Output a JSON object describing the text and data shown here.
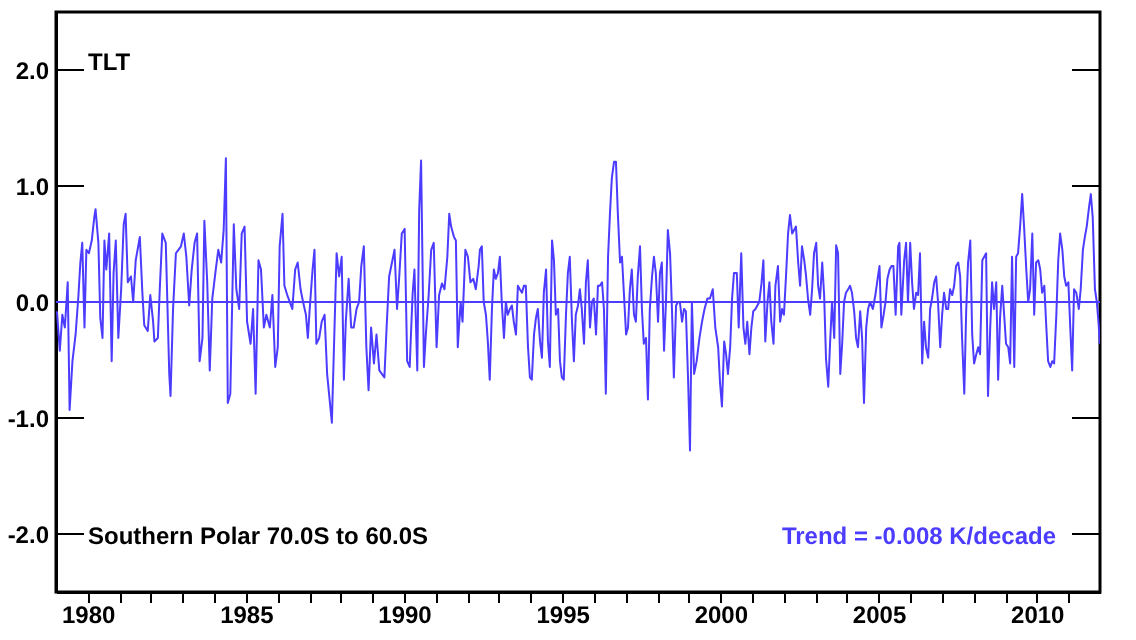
{
  "chart_data": {
    "type": "line",
    "title": "TLT",
    "annotations": [
      "Southern Polar  70.0S to  60.0S",
      "Trend = -0.008 K/decade"
    ],
    "series": [
      {
        "color": "#4b3cff",
        "x": [
          1979.03,
          1979.12,
          1979.2,
          1979.28,
          1979.37,
          1979.43,
          1979.52,
          1979.62,
          1979.71,
          1979.77,
          1979.83,
          1979.9,
          1979.96,
          1980.04,
          1980.13,
          1980.21,
          1980.25,
          1980.34,
          1980.4,
          1980.47,
          1980.53,
          1980.59,
          1980.68,
          1980.76,
          1980.82,
          1980.89,
          1980.97,
          1981.06,
          1981.14,
          1981.2,
          1981.27,
          1981.37,
          1981.44,
          1981.52,
          1981.65,
          1981.73,
          1981.79,
          1981.9,
          1981.98,
          1982.07,
          1982.11,
          1982.22,
          1982.28,
          1982.36,
          1982.47,
          1982.58,
          1982.62,
          1982.7,
          1982.79,
          1982.87,
          1982.95,
          1983.04,
          1983.12,
          1983.21,
          1983.29,
          1983.38,
          1983.46,
          1983.54,
          1983.63,
          1983.69,
          1983.78,
          1983.86,
          1983.94,
          1984.05,
          1984.13,
          1984.22,
          1984.3,
          1984.37,
          1984.43,
          1984.51,
          1984.62,
          1984.7,
          1984.79,
          1984.87,
          1984.96,
          1985.04,
          1985.15,
          1985.23,
          1985.31,
          1985.4,
          1985.48,
          1985.57,
          1985.65,
          1985.76,
          1985.84,
          1985.93,
          1986.01,
          1986.07,
          1986.16,
          1986.22,
          1986.31,
          1986.39,
          1986.47,
          1986.56,
          1986.64,
          1986.73,
          1986.81,
          1986.9,
          1986.96,
          1987.02,
          1987.11,
          1987.17,
          1987.23,
          1987.32,
          1987.4,
          1987.49,
          1987.57,
          1987.67,
          1987.72,
          1987.78,
          1987.87,
          1987.95,
          1988.03,
          1988.1,
          1988.16,
          1988.25,
          1988.33,
          1988.41,
          1988.5,
          1988.58,
          1988.65,
          1988.73,
          1988.81,
          1988.88,
          1988.96,
          1989.05,
          1989.13,
          1989.22,
          1989.3,
          1989.38,
          1989.45,
          1989.53,
          1989.62,
          1989.7,
          1989.78,
          1989.85,
          1989.93,
          1990.02,
          1990.1,
          1990.18,
          1990.27,
          1990.33,
          1990.42,
          1990.48,
          1990.54,
          1990.63,
          1990.69,
          1990.78,
          1990.86,
          1990.94,
          1991.03,
          1991.11,
          1991.2,
          1991.28,
          1991.37,
          1991.43,
          1991.49,
          1991.58,
          1991.64,
          1991.7,
          1991.79,
          1991.85,
          1991.94,
          1992.02,
          1992.1,
          1992.19,
          1992.27,
          1992.36,
          1992.4,
          1992.46,
          1992.52,
          1992.59,
          1992.65,
          1992.71,
          1992.78,
          1992.84,
          1992.9,
          1992.97,
          1993.03,
          1993.09,
          1993.16,
          1993.22,
          1993.28,
          1993.35,
          1993.41,
          1993.47,
          1993.54,
          1993.6,
          1993.66,
          1993.73,
          1993.79,
          1993.85,
          1993.92,
          1993.98,
          1994.04,
          1994.11,
          1994.17,
          1994.23,
          1994.3,
          1994.36,
          1994.42,
          1994.49,
          1994.55,
          1994.61,
          1994.68,
          1994.74,
          1994.8,
          1994.87,
          1994.93,
          1994.99,
          1995.05,
          1995.12,
          1995.18,
          1995.24,
          1995.31,
          1995.37,
          1995.43,
          1995.5,
          1995.56,
          1995.62,
          1995.69,
          1995.75,
          1995.81,
          1995.88,
          1995.94,
          1996.0,
          1996.07,
          1996.13,
          1996.19,
          1996.26,
          1996.32,
          1996.38,
          1996.45,
          1996.51,
          1996.57,
          1996.64,
          1996.7,
          1996.76,
          1996.83,
          1996.89,
          1996.95,
          1997.02,
          1997.08,
          1997.14,
          1997.2,
          1997.27,
          1997.33,
          1997.39,
          1997.46,
          1997.52,
          1997.58,
          1997.65,
          1997.71,
          1997.77,
          1997.84,
          1997.9,
          1997.96,
          1998.03,
          1998.09,
          1998.15,
          1998.22,
          1998.28,
          1998.34,
          1998.41,
          1998.47,
          1998.53,
          1998.6,
          1998.66,
          1998.72,
          1998.79,
          1998.85,
          1998.91,
          1998.98,
          1999.04,
          1999.1,
          1999.17,
          1999.25,
          1999.34,
          1999.42,
          1999.5,
          1999.59,
          1999.67,
          1999.76,
          1999.84,
          1999.93,
          1999.99,
          2000.05,
          2000.12,
          2000.18,
          2000.24,
          2000.31,
          2000.37,
          2000.43,
          2000.52,
          2000.58,
          2000.66,
          2000.73,
          2000.79,
          2000.85,
          2000.92,
          2000.98,
          2001.04,
          2001.11,
          2001.17,
          2001.23,
          2001.3,
          2001.36,
          2001.42,
          2001.49,
          2001.55,
          2001.61,
          2001.68,
          2001.74,
          2001.82,
          2001.89,
          2001.95,
          2002.01,
          2002.08,
          2002.14,
          2002.2,
          2002.27,
          2002.33,
          2002.39,
          2002.46,
          2002.52,
          2002.58,
          2002.65,
          2002.71,
          2002.77,
          2002.84,
          2002.9,
          2002.96,
          2003.03,
          2003.09,
          2003.15,
          2003.22,
          2003.28,
          2003.34,
          2003.41,
          2003.47,
          2003.53,
          2003.6,
          2003.66,
          2003.72,
          2003.79,
          2003.85,
          2003.91,
          2003.97,
          2004.04,
          2004.1,
          2004.16,
          2004.23,
          2004.29,
          2004.35,
          2004.42,
          2004.48,
          2004.54,
          2004.61,
          2004.67,
          2004.73,
          2004.82,
          2004.9,
          2004.97,
          2005.03,
          2005.09,
          2005.16,
          2005.22,
          2005.28,
          2005.35,
          2005.41,
          2005.47,
          2005.54,
          2005.62,
          2005.66,
          2005.72,
          2005.81,
          2005.87,
          2005.93,
          2006.0,
          2006.06,
          2006.12,
          2006.19,
          2006.25,
          2006.31,
          2006.38,
          2006.44,
          2006.5,
          2006.57,
          2006.63,
          2006.69,
          2006.76,
          2006.82,
          2006.88,
          2006.95,
          2007.01,
          2007.07,
          2007.14,
          2007.2,
          2007.26,
          2007.33,
          2007.39,
          2007.45,
          2007.52,
          2007.58,
          2007.64,
          2007.71,
          2007.77,
          2007.83,
          2007.9,
          2007.96,
          2008.02,
          2008.09,
          2008.15,
          2008.21,
          2008.28,
          2008.34,
          2008.4,
          2008.46,
          2008.53,
          2008.59,
          2008.65,
          2008.72,
          2008.78,
          2008.84,
          2008.91,
          2008.97,
          2009.03,
          2009.1,
          2009.16,
          2009.22,
          2009.29,
          2009.35,
          2009.41,
          2009.48,
          2009.54,
          2009.6,
          2009.67,
          2009.73,
          2009.79,
          2009.86,
          2009.92,
          2009.98,
          2010.05,
          2010.11,
          2010.17,
          2010.24,
          2010.3,
          2010.36,
          2010.43,
          2010.49,
          2010.55,
          2010.62,
          2010.68,
          2010.74,
          2010.81,
          2010.87,
          2010.93,
          2011.0,
          2011.06,
          2011.12,
          2011.18,
          2011.25,
          2011.33,
          2011.39,
          2011.46,
          2011.52,
          2011.58,
          2011.65,
          2011.71,
          2011.77,
          2011.84,
          2011.9,
          2011.96,
          2011.99
        ],
        "values": [
          -0.08,
          -0.42,
          -0.11,
          -0.22,
          0.17,
          -0.93,
          -0.51,
          -0.28,
          0.06,
          0.34,
          0.51,
          -0.22,
          0.45,
          0.42,
          0.53,
          0.73,
          0.8,
          0.51,
          -0.14,
          -0.31,
          0.53,
          0.28,
          0.59,
          -0.51,
          0.25,
          0.53,
          -0.31,
          0.11,
          0.67,
          0.76,
          0.17,
          0.22,
          0.0,
          0.36,
          0.56,
          0.08,
          -0.2,
          -0.25,
          0.06,
          -0.17,
          -0.34,
          -0.31,
          0.11,
          0.59,
          0.51,
          -0.62,
          -0.81,
          -0.06,
          0.42,
          0.45,
          0.48,
          0.59,
          0.39,
          -0.03,
          0.28,
          0.51,
          0.59,
          -0.51,
          -0.31,
          0.7,
          0.17,
          -0.59,
          0.03,
          0.28,
          0.45,
          0.34,
          0.62,
          1.24,
          -0.87,
          -0.79,
          0.67,
          0.11,
          -0.06,
          0.59,
          0.65,
          -0.17,
          -0.36,
          -0.06,
          -0.79,
          0.36,
          0.28,
          -0.22,
          -0.11,
          -0.22,
          0.06,
          -0.56,
          -0.39,
          0.48,
          0.76,
          0.14,
          0.06,
          0.0,
          -0.06,
          0.28,
          0.34,
          0.11,
          0.0,
          -0.11,
          -0.31,
          -0.06,
          0.28,
          0.45,
          -0.36,
          -0.31,
          -0.17,
          -0.11,
          -0.62,
          -0.9,
          -1.04,
          -0.45,
          0.42,
          0.22,
          0.39,
          -0.67,
          -0.17,
          0.2,
          -0.22,
          -0.22,
          -0.06,
          0.0,
          0.31,
          0.48,
          -0.39,
          -0.76,
          -0.22,
          -0.53,
          -0.28,
          -0.59,
          -0.62,
          -0.65,
          -0.22,
          0.22,
          0.34,
          0.45,
          -0.06,
          0.22,
          0.59,
          0.63,
          -0.51,
          -0.56,
          0.06,
          0.28,
          -0.59,
          0.79,
          1.22,
          -0.56,
          -0.28,
          0.06,
          0.45,
          0.51,
          -0.39,
          0.06,
          0.16,
          0.11,
          0.39,
          0.76,
          0.65,
          0.56,
          0.53,
          -0.39,
          0.0,
          -0.17,
          0.45,
          0.39,
          0.17,
          0.2,
          0.11,
          0.31,
          0.45,
          0.48,
          0.0,
          -0.11,
          -0.34,
          -0.67,
          -0.06,
          0.28,
          0.2,
          0.25,
          0.39,
          0.0,
          -0.31,
          0.0,
          -0.11,
          -0.06,
          -0.03,
          -0.17,
          -0.28,
          0.14,
          0.11,
          0.08,
          0.14,
          0.14,
          -0.39,
          -0.65,
          -0.67,
          -0.28,
          -0.14,
          -0.06,
          -0.34,
          -0.48,
          0.08,
          0.28,
          -0.34,
          -0.56,
          0.53,
          0.36,
          -0.11,
          -0.06,
          -0.51,
          -0.65,
          -0.67,
          -0.11,
          0.25,
          0.39,
          -0.17,
          -0.51,
          -0.11,
          -0.03,
          0.11,
          -0.06,
          -0.36,
          0.17,
          0.36,
          -0.22,
          0.0,
          0.03,
          -0.28,
          0.14,
          0.14,
          0.17,
          -0.06,
          -0.79,
          0.39,
          0.76,
          1.07,
          1.21,
          1.21,
          0.76,
          0.34,
          0.39,
          0.08,
          -0.28,
          -0.22,
          0.11,
          0.28,
          -0.11,
          -0.17,
          0.22,
          0.48,
          -0.06,
          -0.36,
          -0.31,
          -0.84,
          -0.06,
          0.22,
          0.39,
          0.25,
          -0.17,
          0.25,
          0.34,
          -0.42,
          0.0,
          0.62,
          0.42,
          -0.06,
          -0.65,
          -0.03,
          0.0,
          0.0,
          -0.17,
          -0.06,
          -0.08,
          -0.67,
          -1.28,
          0.0,
          -0.62,
          -0.51,
          -0.31,
          -0.17,
          -0.06,
          0.03,
          0.03,
          0.11,
          -0.22,
          -0.39,
          -0.7,
          -0.9,
          -0.34,
          -0.45,
          -0.62,
          -0.39,
          0.03,
          0.25,
          0.25,
          -0.22,
          0.42,
          -0.22,
          -0.36,
          -0.17,
          -0.45,
          -0.22,
          -0.08,
          -0.06,
          -0.03,
          0.0,
          0.16,
          0.36,
          -0.34,
          0.0,
          0.17,
          -0.17,
          -0.36,
          0.14,
          0.31,
          -0.17,
          -0.06,
          -0.11,
          0.25,
          0.59,
          0.75,
          0.59,
          0.62,
          0.65,
          0.34,
          0.14,
          0.48,
          0.36,
          0.22,
          0.03,
          -0.11,
          0.11,
          0.42,
          0.51,
          0.14,
          0.03,
          0.34,
          0.06,
          -0.49,
          -0.73,
          -0.34,
          0.0,
          -0.31,
          0.49,
          0.42,
          -0.62,
          -0.36,
          0.0,
          0.08,
          0.11,
          0.14,
          0.08,
          -0.08,
          -0.31,
          -0.39,
          -0.08,
          -0.31,
          -0.87,
          -0.22,
          -0.06,
          0.0,
          -0.06,
          0.06,
          0.2,
          0.31,
          -0.22,
          -0.11,
          0.0,
          0.2,
          0.28,
          0.31,
          0.31,
          -0.11,
          0.48,
          0.51,
          -0.11,
          0.36,
          0.51,
          0.0,
          0.51,
          0.17,
          -0.06,
          0.08,
          0.06,
          0.42,
          -0.53,
          -0.17,
          -0.39,
          -0.48,
          -0.06,
          0.03,
          0.17,
          0.22,
          0.0,
          -0.39,
          -0.11,
          0.08,
          -0.06,
          -0.06,
          0.11,
          0.06,
          0.14,
          0.31,
          0.34,
          0.22,
          -0.31,
          -0.79,
          -0.08,
          0.34,
          0.53,
          -0.28,
          -0.53,
          -0.45,
          -0.39,
          -0.45,
          0.36,
          0.39,
          0.42,
          -0.81,
          -0.22,
          0.17,
          -0.06,
          0.17,
          -0.67,
          -0.14,
          0.14,
          -0.11,
          -0.36,
          -0.39,
          -0.53,
          0.39,
          -0.56,
          0.39,
          0.42,
          0.67,
          0.93,
          0.65,
          0.28,
          0.0,
          0.11,
          0.59,
          -0.11,
          0.34,
          0.36,
          0.28,
          0.08,
          0.14,
          -0.2,
          -0.51,
          -0.56,
          -0.51,
          -0.53,
          -0.11,
          0.36,
          0.59,
          0.45,
          0.22,
          0.14,
          0.17,
          -0.22,
          -0.59,
          0.11,
          0.08,
          -0.06,
          0.11,
          0.45,
          0.56,
          0.65,
          0.81,
          0.93,
          0.73,
          0.11,
          0.0,
          -0.2,
          -0.36
        ]
      }
    ],
    "xlim": [
      1979,
      2012
    ],
    "xticks": [
      1980,
      {
        "value": 1981,
        "label": null
      },
      {
        "value": 1982,
        "label": null
      },
      {
        "value": 1983,
        "label": null
      },
      {
        "value": 1984,
        "label": null
      },
      1985,
      {
        "value": 1986,
        "label": null
      },
      {
        "value": 1987,
        "label": null
      },
      {
        "value": 1988,
        "label": null
      },
      {
        "value": 1989,
        "label": null
      },
      1990,
      {
        "value": 1991,
        "label": null
      },
      {
        "value": 1992,
        "label": null
      },
      {
        "value": 1993,
        "label": null
      },
      {
        "value": 1994,
        "label": null
      },
      1995,
      {
        "value": 1996,
        "label": null
      },
      {
        "value": 1997,
        "label": null
      },
      {
        "value": 1998,
        "label": null
      },
      {
        "value": 1999,
        "label": null
      },
      2000,
      {
        "value": 2001,
        "label": null
      },
      {
        "value": 2002,
        "label": null
      },
      {
        "value": 2003,
        "label": null
      },
      {
        "value": 2004,
        "label": null
      },
      2005,
      {
        "value": 2006,
        "label": null
      },
      {
        "value": 2007,
        "label": null
      },
      {
        "value": 2008,
        "label": null
      },
      {
        "value": 2009,
        "label": null
      },
      2010,
      {
        "value": 2011,
        "label": null
      }
    ],
    "ylim": [
      -2.5,
      2.5
    ],
    "yticks": [
      {
        "value": -2,
        "label": "-2.0"
      },
      {
        "value": -1,
        "label": "-1.0"
      },
      {
        "value": 0,
        "label": "0.0"
      },
      {
        "value": 1,
        "label": "1.0"
      },
      {
        "value": 2,
        "label": "2.0"
      }
    ],
    "ref_lines": [
      {
        "axis": "y",
        "value": 0,
        "color": "#4b3cff"
      }
    ],
    "grid": false
  }
}
